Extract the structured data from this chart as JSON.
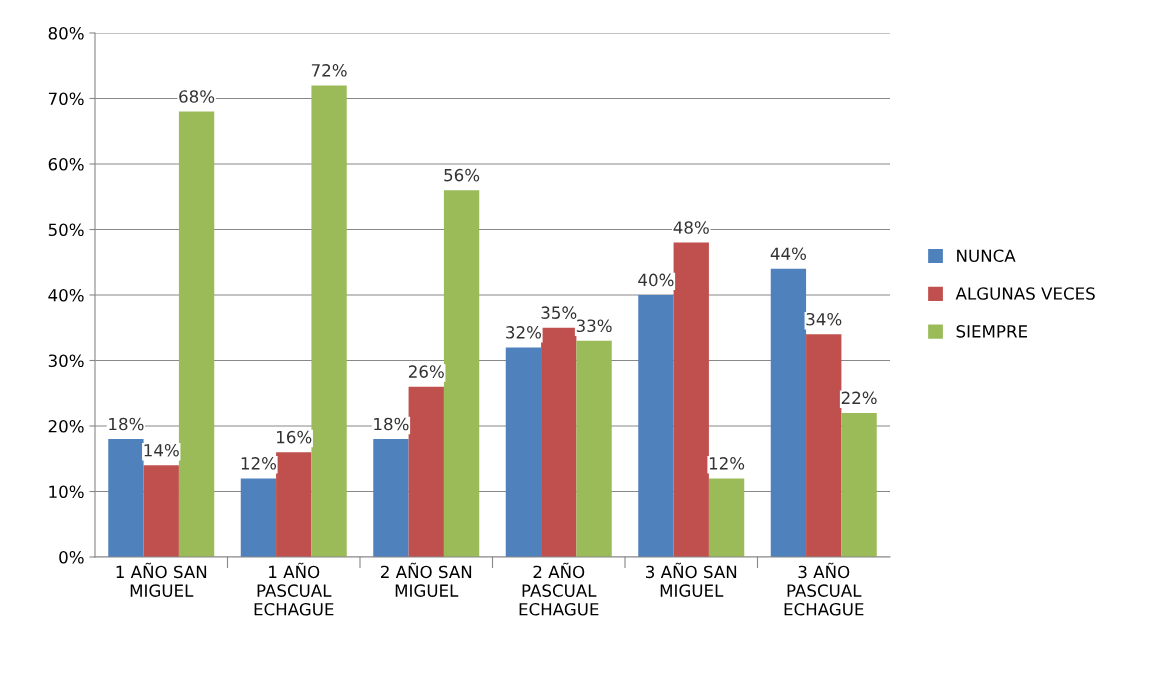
{
  "chart_data": {
    "type": "bar",
    "categories": [
      "1 AÑO SAN\nMIGUEL",
      "1 AÑO\nPASCUAL\nECHAGUE",
      "2 AÑO SAN\nMIGUEL",
      "2 AÑO\nPASCUAL\nECHAGUE",
      "3 AÑO SAN\nMIGUEL",
      "3 AÑO\nPASCUAL\nECHAGUE"
    ],
    "series": [
      {
        "name": "NUNCA",
        "color": "#4f81bd",
        "values": [
          18,
          12,
          18,
          32,
          40,
          44
        ],
        "value_labels": [
          "18%",
          "12%",
          "18%",
          "32%",
          "40%",
          "44%"
        ]
      },
      {
        "name": "ALGUNAS VECES",
        "color": "#c0504d",
        "values": [
          14,
          16,
          26,
          35,
          48,
          34
        ],
        "value_labels": [
          "14%",
          "16%",
          "26%",
          "35%",
          "48%",
          "34%"
        ]
      },
      {
        "name": "SIEMPRE",
        "color": "#9bbb59",
        "values": [
          68,
          72,
          56,
          33,
          12,
          22
        ],
        "value_labels": [
          "68%",
          "72%",
          "56%",
          "33%",
          "12%",
          "22%"
        ]
      }
    ],
    "ylim": [
      0,
      80
    ],
    "yticks": [
      {
        "value": 0,
        "label": "0%"
      },
      {
        "value": 10,
        "label": "10%"
      },
      {
        "value": 20,
        "label": "20%"
      },
      {
        "value": 30,
        "label": "30%"
      },
      {
        "value": 40,
        "label": "40%"
      },
      {
        "value": 50,
        "label": "50%"
      },
      {
        "value": 60,
        "label": "60%"
      },
      {
        "value": 70,
        "label": "70%"
      },
      {
        "value": 80,
        "label": "80%"
      }
    ],
    "grid": "y",
    "legend": "right"
  }
}
